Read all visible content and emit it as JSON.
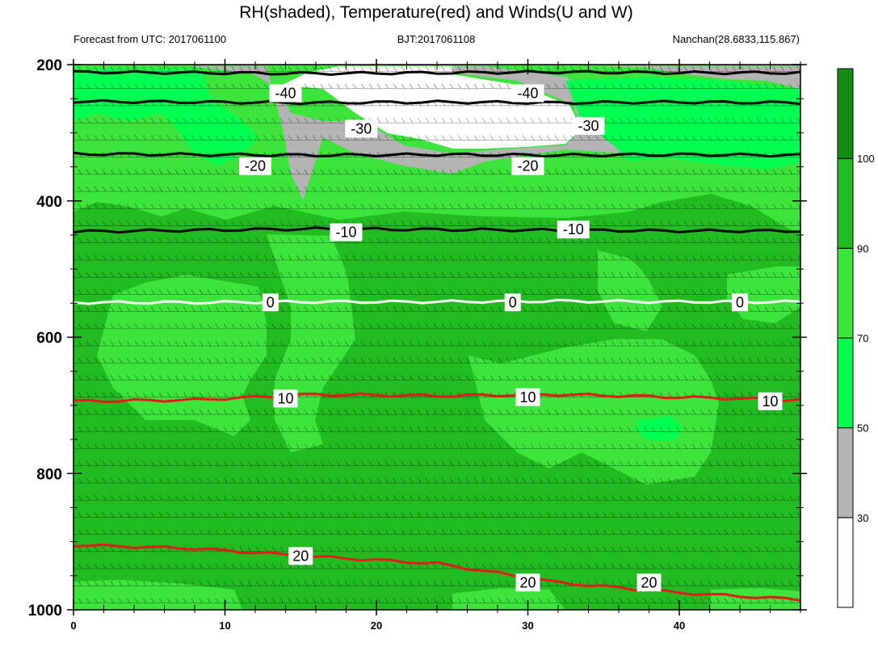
{
  "chart_data": {
    "type": "contour",
    "title": "RH(shaded), Temperature(red) and Winds(U and W)",
    "subtitle_left": "Forecast from UTC: 2017061100",
    "subtitle_center": "BJT:2017061108",
    "subtitle_right": "Nanchan(28.6833,115.867)",
    "x_ticks": [
      "0",
      "10",
      "20",
      "30",
      "40"
    ],
    "x_tick_values": [
      0,
      10,
      20,
      30,
      40
    ],
    "xlim": [
      0,
      48
    ],
    "y_ticks": [
      "200",
      "400",
      "600",
      "800",
      "1000"
    ],
    "y_tick_values": [
      200,
      400,
      600,
      800,
      1000
    ],
    "ylim": [
      200,
      1000
    ],
    "y_inverted": true,
    "colorbar": {
      "ticks": [
        "30",
        "50",
        "70",
        "90",
        "100"
      ],
      "levels": [
        0,
        30,
        50,
        70,
        90,
        100,
        110
      ],
      "colors": [
        "#ffffff",
        "#b4b4b4",
        "#00ff50",
        "#3ce43c",
        "#22bb22",
        "#138c13"
      ]
    },
    "temperature_contours": [
      {
        "label": "-40",
        "value": -40,
        "color": "#000000",
        "p": [
          211,
          212,
          213,
          212,
          211,
          212,
          212
        ],
        "labels": [
          [
            "-40",
            14,
            242
          ],
          [
            "-40",
            30,
            242
          ]
        ]
      },
      {
        "label": "-30",
        "value": -30,
        "color": "#000000",
        "p": [
          254,
          255,
          256,
          255,
          256,
          255,
          256
        ],
        "labels": [
          [
            "-30",
            19,
            294
          ],
          [
            "-30",
            34,
            290
          ]
        ]
      },
      {
        "label": "-20",
        "value": -20,
        "color": "#000000",
        "p": [
          331,
          332,
          333,
          332,
          333,
          332,
          333
        ],
        "labels": [
          [
            "-20",
            12,
            349
          ],
          [
            "-20",
            30,
            349
          ]
        ]
      },
      {
        "label": "-10",
        "value": -10,
        "color": "#000000",
        "p": [
          445,
          443,
          441,
          442,
          443,
          444,
          444
        ],
        "labels": [
          [
            "-10",
            18,
            446
          ],
          [
            "-10",
            33,
            442
          ]
        ]
      },
      {
        "label": "0",
        "value": 0,
        "color": "#ffffff",
        "p": [
          549,
          549,
          548,
          548,
          547,
          548,
          548
        ],
        "labels": [
          [
            "0",
            13,
            549
          ],
          [
            "0",
            29,
            549
          ],
          [
            "0",
            44,
            549
          ]
        ]
      },
      {
        "label": "10",
        "value": 10,
        "color": "#e8181a",
        "p": [
          694,
          692,
          684,
          686,
          684,
          688,
          692
        ],
        "labels": [
          [
            "10",
            14,
            690
          ],
          [
            "10",
            30,
            688
          ],
          [
            "10",
            46,
            694
          ]
        ]
      },
      {
        "label": "20",
        "value": 20,
        "color": "#e8181a",
        "p": [
          905,
          910,
          922,
          932,
          960,
          975,
          985
        ],
        "labels": [
          [
            "20",
            15,
            921
          ],
          [
            "20",
            30,
            960
          ],
          [
            "20",
            38,
            960
          ]
        ]
      }
    ]
  }
}
